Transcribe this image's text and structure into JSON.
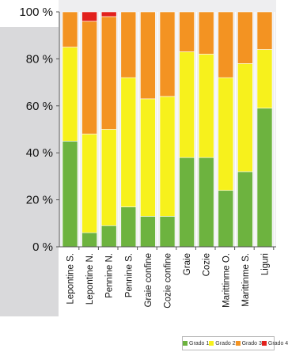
{
  "chart_data": {
    "type": "bar",
    "stacked": true,
    "title": "",
    "xlabel": "",
    "ylabel": "",
    "ylim": [
      0,
      100
    ],
    "ytick_labels": [
      "0 %",
      "20 %",
      "40 %",
      "60 %",
      "80 %",
      "100 %"
    ],
    "categories": [
      "Lepontine S.",
      "Lepontine N.",
      "Pennine N.",
      "Pennine S.",
      "Graie confine",
      "Cozie confine",
      "Graie",
      "Cozie",
      "Marittinme O.",
      "Marittinme S.",
      "Liguri"
    ],
    "series": [
      {
        "name": "Grado 1",
        "color": "#6db33f",
        "values": [
          45,
          6,
          9,
          17,
          13,
          13,
          38,
          38,
          24,
          32,
          59
        ]
      },
      {
        "name": "Grado 2",
        "color": "#f7f11c",
        "values": [
          40,
          42,
          41,
          55,
          50,
          51,
          45,
          44,
          48,
          46,
          25
        ]
      },
      {
        "name": "Grado 3",
        "color": "#f39322",
        "values": [
          15,
          48,
          48,
          28,
          37,
          36,
          17,
          18,
          28,
          22,
          16
        ]
      },
      {
        "name": "Grado 4",
        "color": "#e2201c",
        "values": [
          0,
          4,
          2,
          0,
          0,
          0,
          0,
          0,
          0,
          0,
          0
        ]
      }
    ],
    "grid": false,
    "legend_position": "bottom"
  }
}
